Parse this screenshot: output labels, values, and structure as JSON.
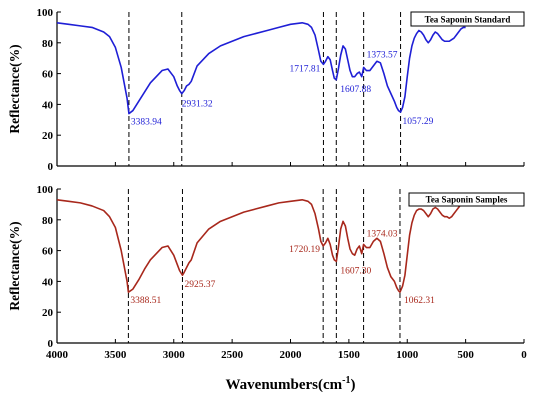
{
  "chart_data": [
    {
      "type": "line",
      "title": "",
      "xlabel": "Wavenumbers(cm",
      "xlabel_sup": "-1",
      "xlabel_close": ")",
      "ylabel": "Reflectance(%)",
      "xlim": [
        4000,
        0
      ],
      "ylim": [
        0,
        100
      ],
      "xticks": [
        4000,
        3500,
        3000,
        2500,
        2000,
        1500,
        1000,
        500,
        0
      ],
      "yticks": [
        0,
        20,
        40,
        60,
        80,
        100
      ],
      "grid": false,
      "legend_position": "top-right",
      "series": [
        {
          "name": "Tea Saponin Standard",
          "color": "#1f1fd6",
          "x": [
            4000,
            3900,
            3800,
            3700,
            3600,
            3550,
            3500,
            3450,
            3400,
            3383.94,
            3350,
            3300,
            3250,
            3200,
            3150,
            3100,
            3050,
            3000,
            2970,
            2950,
            2931.32,
            2910,
            2890,
            2870,
            2850,
            2800,
            2700,
            2600,
            2500,
            2400,
            2300,
            2200,
            2100,
            2000,
            1900,
            1850,
            1820,
            1790,
            1760,
            1740,
            1717.81,
            1700,
            1680,
            1660,
            1640,
            1625,
            1607.88,
            1590,
            1570,
            1550,
            1530,
            1510,
            1490,
            1470,
            1450,
            1430,
            1410,
            1390,
            1373.57,
            1350,
            1320,
            1290,
            1260,
            1230,
            1200,
            1170,
            1140,
            1110,
            1090,
            1075,
            1057.29,
            1040,
            1020,
            1000,
            980,
            960,
            940,
            920,
            900,
            880,
            860,
            840,
            820,
            800,
            780,
            760,
            740,
            720,
            700,
            680,
            660,
            640,
            620,
            600,
            580,
            560,
            540,
            520,
            500
          ],
          "y": [
            93,
            92,
            91,
            90,
            87,
            84,
            77,
            64,
            44,
            34,
            36,
            42,
            48,
            54,
            58,
            62,
            63,
            58,
            52,
            49,
            47,
            49,
            52,
            53,
            55,
            65,
            73,
            78,
            81,
            84,
            86,
            88,
            90,
            92,
            93,
            92,
            90,
            85,
            75,
            68,
            66,
            68,
            71,
            69,
            62,
            57,
            56,
            63,
            72,
            78,
            76,
            69,
            62,
            58,
            58,
            60,
            61,
            58,
            64,
            62,
            62,
            65,
            68,
            67,
            60,
            52,
            47,
            42,
            38,
            36,
            35,
            38,
            45,
            58,
            70,
            78,
            83,
            86,
            88,
            87,
            85,
            82,
            80,
            82,
            85,
            87,
            86,
            84,
            82,
            81,
            81,
            81,
            82,
            83,
            85,
            87,
            89,
            90,
            90
          ],
          "annotations": [
            {
              "text": "3383.94",
              "x": 3383.94,
              "y": 34
            },
            {
              "text": "2931.32",
              "x": 2931.32,
              "y": 47
            },
            {
              "text": "1717.81",
              "x": 1717.81,
              "y": 66
            },
            {
              "text": "1607.88",
              "x": 1607.88,
              "y": 56
            },
            {
              "text": "1373.57",
              "x": 1373.57,
              "y": 64
            },
            {
              "text": "1057.29",
              "x": 1057.29,
              "y": 35
            }
          ]
        }
      ]
    },
    {
      "type": "line",
      "title": "",
      "xlabel": "Wavenumbers(cm",
      "xlabel_sup": "-1",
      "xlabel_close": ")",
      "ylabel": "Reflectance(%)",
      "xlim": [
        4000,
        0
      ],
      "ylim": [
        0,
        100
      ],
      "xticks": [
        4000,
        3500,
        3000,
        2500,
        2000,
        1500,
        1000,
        500,
        0
      ],
      "yticks": [
        0,
        20,
        40,
        60,
        80,
        100
      ],
      "grid": false,
      "legend_position": "top-right",
      "series": [
        {
          "name": "Tea Saponin Samples",
          "color": "#a8281c",
          "x": [
            4000,
            3900,
            3800,
            3700,
            3600,
            3550,
            3500,
            3450,
            3400,
            3388.51,
            3350,
            3300,
            3250,
            3200,
            3150,
            3100,
            3050,
            3000,
            2970,
            2950,
            2925.37,
            2910,
            2890,
            2870,
            2850,
            2800,
            2700,
            2600,
            2500,
            2400,
            2300,
            2200,
            2100,
            2000,
            1900,
            1850,
            1820,
            1790,
            1760,
            1740,
            1720.19,
            1700,
            1680,
            1660,
            1640,
            1625,
            1607.3,
            1590,
            1570,
            1550,
            1530,
            1510,
            1490,
            1470,
            1450,
            1430,
            1410,
            1390,
            1374.03,
            1350,
            1320,
            1290,
            1260,
            1230,
            1200,
            1170,
            1140,
            1110,
            1090,
            1075,
            1062.31,
            1040,
            1020,
            1000,
            980,
            960,
            940,
            920,
            900,
            880,
            860,
            840,
            820,
            800,
            780,
            760,
            740,
            720,
            700,
            680,
            660,
            640,
            620,
            600,
            580,
            560,
            540,
            520,
            500
          ],
          "y": [
            93,
            92,
            91,
            89,
            86,
            82,
            75,
            60,
            40,
            33,
            35,
            41,
            48,
            54,
            58,
            62,
            63,
            57,
            51,
            47,
            44,
            46,
            49,
            52,
            54,
            65,
            74,
            79,
            82,
            85,
            87,
            89,
            91,
            92,
            93,
            92,
            90,
            84,
            74,
            66,
            63,
            65,
            68,
            64,
            57,
            54,
            53,
            62,
            74,
            79,
            76,
            68,
            61,
            58,
            57,
            61,
            63,
            58,
            64,
            62,
            62,
            66,
            68,
            66,
            58,
            49,
            43,
            40,
            36,
            34,
            33,
            37,
            44,
            57,
            70,
            78,
            83,
            86,
            87,
            87,
            86,
            84,
            82,
            84,
            87,
            88,
            87,
            85,
            83,
            82,
            82,
            81,
            82,
            84,
            86,
            88,
            90,
            90,
            91
          ],
          "annotations": [
            {
              "text": "3388.51",
              "x": 3388.51,
              "y": 33
            },
            {
              "text": "2925.37",
              "x": 2925.37,
              "y": 44
            },
            {
              "text": "1720.19",
              "x": 1720.19,
              "y": 63
            },
            {
              "text": "1607.30",
              "x": 1607.3,
              "y": 53
            },
            {
              "text": "1374.03",
              "x": 1374.03,
              "y": 64
            },
            {
              "text": "1062.31",
              "x": 1062.31,
              "y": 33
            }
          ]
        }
      ]
    }
  ]
}
